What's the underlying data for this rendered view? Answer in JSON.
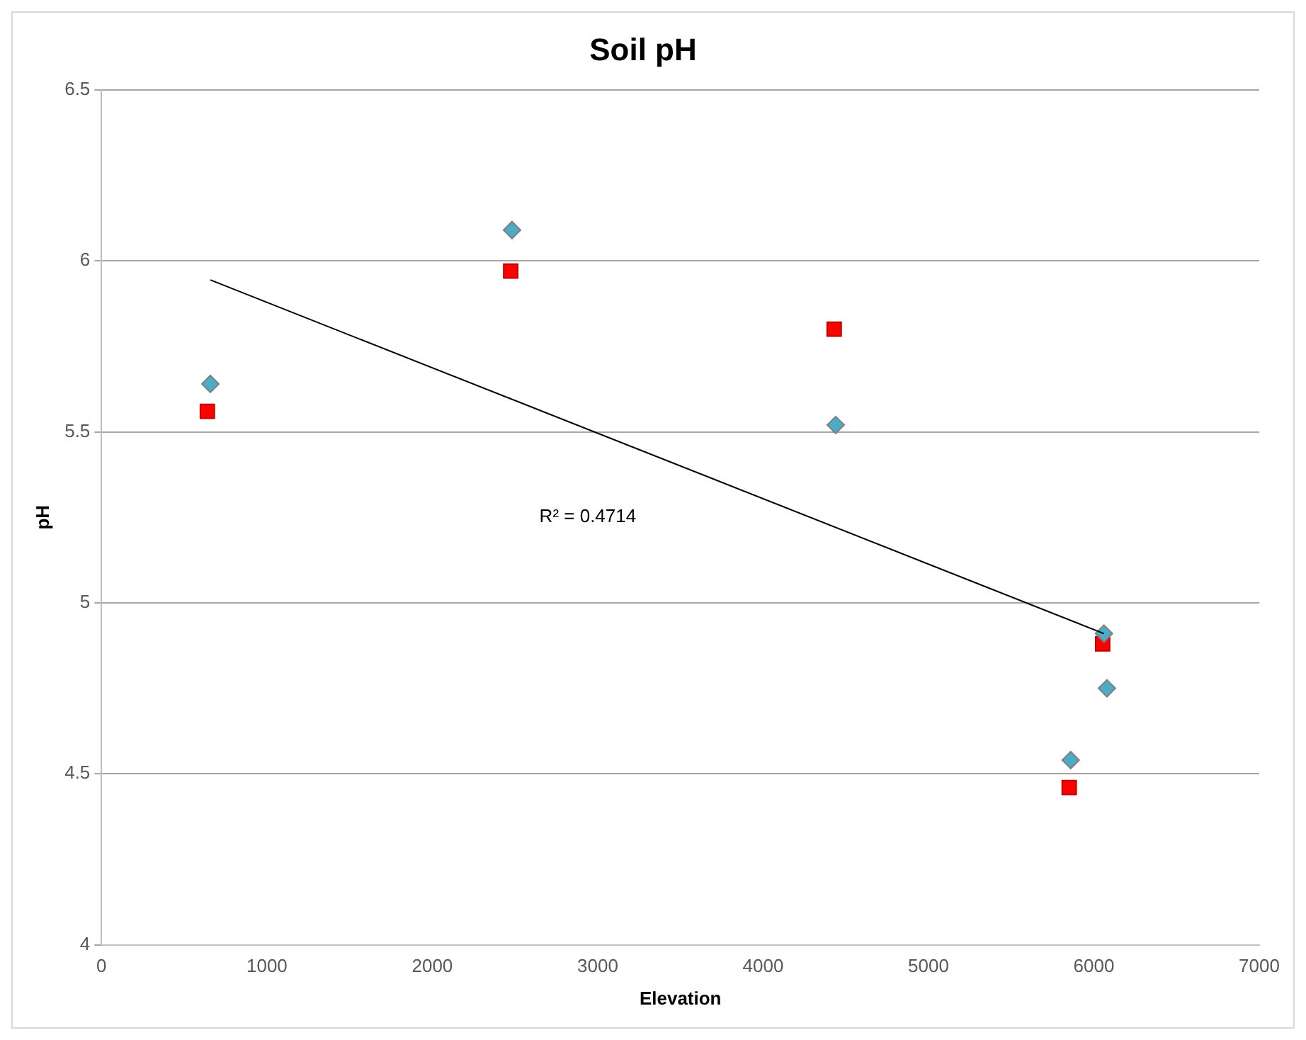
{
  "chart_data": {
    "type": "scatter",
    "title": "Soil pH",
    "xlabel": "Elevation",
    "ylabel": "pH",
    "xlim": [
      0,
      7000
    ],
    "xticks": [
      0,
      1000,
      2000,
      3000,
      4000,
      5000,
      6000,
      7000
    ],
    "ylim": [
      4,
      6.5
    ],
    "yticks": [
      4,
      4.5,
      5,
      5.5,
      6,
      6.5
    ],
    "grid": "y",
    "legend": false,
    "series": [
      {
        "marker": "diamond",
        "color": "#4bacc6",
        "x": [
          658,
          2482,
          4439,
          6061,
          6079,
          5860
        ],
        "values": [
          5.64,
          6.09,
          5.52,
          4.91,
          4.75,
          4.54
        ]
      },
      {
        "marker": "square",
        "color": "#ff0000",
        "x": [
          640,
          2474,
          4430,
          6053,
          5851
        ],
        "values": [
          5.56,
          5.97,
          5.8,
          4.88,
          4.46
        ]
      },
      {
        "type": "line",
        "marker": "none",
        "color": "#000000",
        "x": [
          658,
          6061
        ],
        "values": [
          5.944,
          4.91
        ]
      }
    ],
    "annotations": [
      "R² = 0.4714"
    ]
  }
}
